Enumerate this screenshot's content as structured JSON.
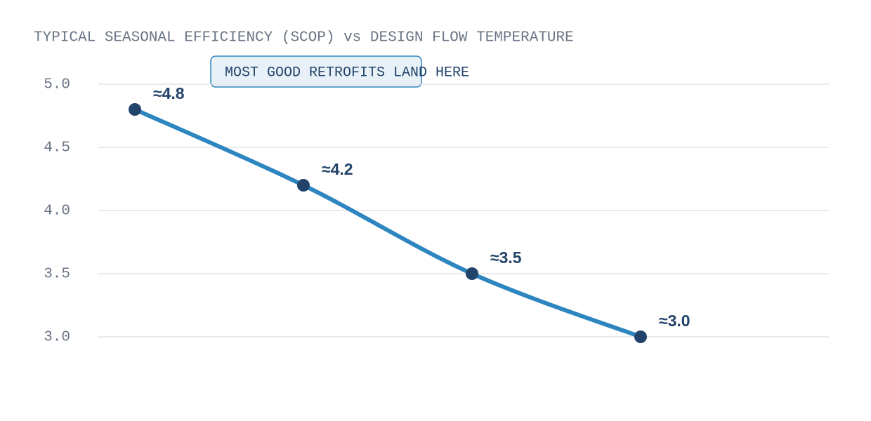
{
  "chart_data": {
    "type": "line",
    "title": "TYPICAL SEASONAL EFFICIENCY (SCOP) vs DESIGN FLOW TEMPERATURE",
    "annotation": "MOST GOOD RETROFITS LAND HERE",
    "categories": [
      null,
      null,
      null,
      null
    ],
    "series": [
      {
        "color": "#2e86c1",
        "marker_color": "#22446a",
        "values": [
          4.8,
          4.2,
          3.5,
          3.0
        ],
        "value_labels": [
          "≈4.8",
          "≈4.2",
          "≈3.5",
          "≈3.0"
        ]
      }
    ],
    "ylim": [
      3,
      5
    ],
    "yticks": [
      {
        "value": 3,
        "label": "3.0"
      },
      3.5,
      {
        "value": 4,
        "label": "4.0"
      },
      4.5,
      {
        "value": 5,
        "label": "5.0"
      }
    ],
    "grid": true
  }
}
